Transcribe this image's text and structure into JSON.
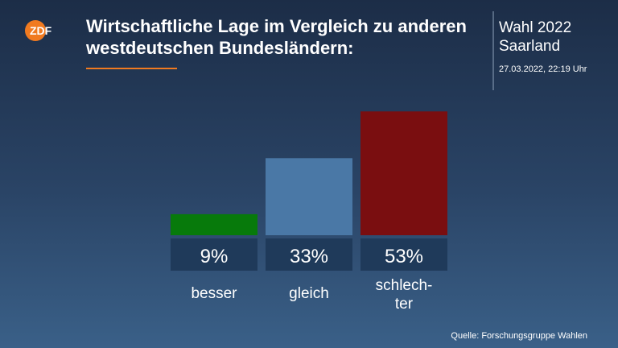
{
  "logo": "ZDF",
  "header": {
    "election": "Wahl 2022",
    "region": "Saarland",
    "timestamp": "27.03.2022, 22:19 Uhr"
  },
  "source": "Quelle: Forschungsgruppe Wahlen",
  "chart_data": {
    "type": "bar",
    "title": "Wirtschaftliche Lage im Vergleich zu anderen westdeutschen Bundesländern:",
    "categories": [
      "besser",
      "gleich",
      "schlech-\nter"
    ],
    "values": [
      9,
      33,
      53
    ],
    "value_labels": [
      "9%",
      "33%",
      "53%"
    ],
    "colors": [
      "#077a0b",
      "#4a78a6",
      "#7a0e10"
    ]
  }
}
